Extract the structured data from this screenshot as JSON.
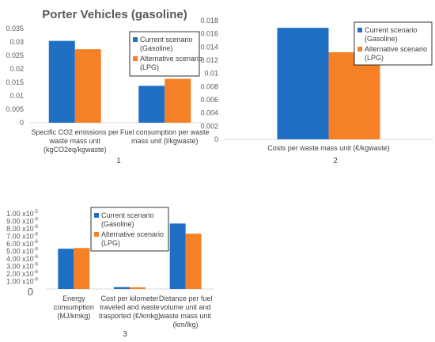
{
  "page_title": "Porter Vehicles (gasoline)",
  "colors": {
    "current": "#1f6fc5",
    "alternative": "#f58025",
    "axis": "#d9d9d9"
  },
  "chart_data": [
    {
      "type": "bar",
      "panel_label": "1",
      "categories": [
        [
          "Specific CO2 emissions per",
          "waste mass unit",
          "(kgCO2eq/kgwaste)"
        ],
        [
          "Fuel consumption per waste",
          "mass unit (l/kgwaste)"
        ]
      ],
      "series": [
        {
          "name": [
            "Current scenario",
            "(Gasoline)"
          ],
          "values": [
            0.0304,
            0.0137
          ]
        },
        {
          "name": [
            "Alternative scenario",
            "(LPG)"
          ],
          "values": [
            0.0273,
            0.0163
          ]
        }
      ],
      "ylim": [
        0,
        0.035
      ],
      "yticks": [
        "0",
        "0.005",
        "0.01",
        "0.015",
        "0.02",
        "0.025",
        "0.03",
        "0.035"
      ],
      "legend": "top-right"
    },
    {
      "type": "bar",
      "panel_label": "2",
      "categories": [
        [
          "Costs per waste mass unit (€/kgwaste)"
        ]
      ],
      "series": [
        {
          "name": [
            "Current scenario",
            "(Gasoline)"
          ],
          "values": [
            0.0169
          ]
        },
        {
          "name": [
            "Alternative scenario",
            "(LPG)"
          ],
          "values": [
            0.0132
          ]
        }
      ],
      "ylim": [
        0,
        0.018
      ],
      "yticks": [
        "0",
        "0.002",
        "0.004",
        "0.006",
        "0.008",
        "0.01",
        "0.012",
        "0.014",
        "0.016",
        "0.018"
      ],
      "legend": "top-right"
    },
    {
      "type": "bar",
      "panel_label": "3",
      "categories": [
        [
          "Energy",
          "consumption",
          "(MJ/kmkg)"
        ],
        [
          "Cost per kilometer",
          "traveled and waste",
          "trasported (€/kmkg)"
        ],
        [
          "Distance per fuel",
          "volume unit and",
          "waste mass unit",
          "(km/lkg)"
        ]
      ],
      "series": [
        {
          "name": [
            "Current scenario",
            "(Gasoline)"
          ],
          "values": [
            5.35e-06,
            2.5e-07,
            8.7e-06
          ]
        },
        {
          "name": [
            "Alternative scenario",
            "(LPG)"
          ],
          "values": [
            5.45e-06,
            2.2e-07,
            7.35e-06
          ]
        }
      ],
      "ylim": [
        0,
        1e-05
      ],
      "yticks": [
        [
          "0",
          ""
        ],
        [
          "1.00 x10",
          "-6"
        ],
        [
          "2.00 x10",
          "-6"
        ],
        [
          "3.00 x10",
          "-6"
        ],
        [
          "4.00 x10",
          "-6"
        ],
        [
          "5.00 x10",
          "-6"
        ],
        [
          "6.00 x10",
          "-6"
        ],
        [
          "7.00 x10",
          "-6"
        ],
        [
          "8.00 x10",
          "-6"
        ],
        [
          "9.00 x10",
          "-6"
        ],
        [
          "1.00 x10",
          "-5"
        ]
      ],
      "legend": "top-left"
    }
  ]
}
